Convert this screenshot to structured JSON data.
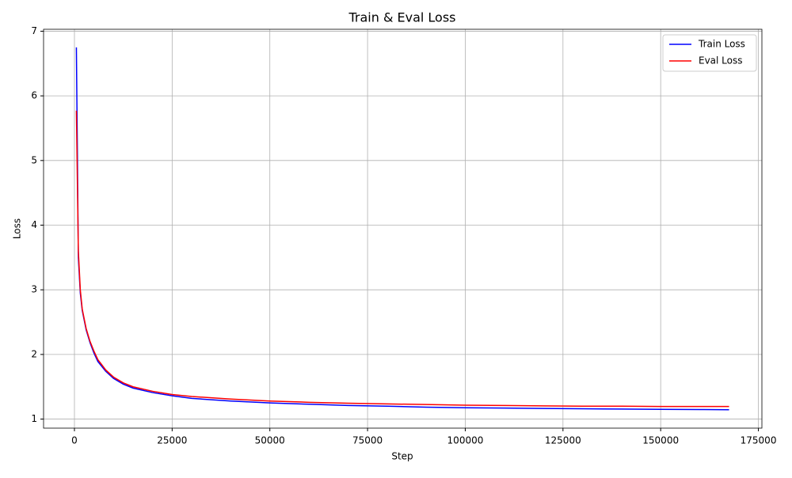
{
  "chart_data": {
    "type": "line",
    "title": "Train & Eval Loss",
    "xlabel": "Step",
    "ylabel": "Loss",
    "x": [
      500,
      1000,
      1500,
      2000,
      3000,
      4000,
      5000,
      6000,
      8000,
      10000,
      12500,
      15000,
      20000,
      25000,
      30000,
      40000,
      50000,
      60000,
      70000,
      80000,
      90000,
      100000,
      110000,
      120000,
      130000,
      140000,
      150000,
      160000,
      167500
    ],
    "series": [
      {
        "name": "Train Loss",
        "color": "#0000ff",
        "values": [
          6.75,
          3.5,
          2.95,
          2.68,
          2.38,
          2.18,
          2.02,
          1.89,
          1.74,
          1.63,
          1.54,
          1.48,
          1.41,
          1.36,
          1.32,
          1.28,
          1.25,
          1.23,
          1.21,
          1.2,
          1.185,
          1.175,
          1.17,
          1.165,
          1.16,
          1.155,
          1.15,
          1.148,
          1.145
        ]
      },
      {
        "name": "Eval Loss",
        "color": "#ff0000",
        "values": [
          5.77,
          3.6,
          3.0,
          2.7,
          2.4,
          2.2,
          2.05,
          1.92,
          1.76,
          1.65,
          1.56,
          1.5,
          1.43,
          1.38,
          1.35,
          1.31,
          1.28,
          1.26,
          1.245,
          1.235,
          1.225,
          1.215,
          1.21,
          1.205,
          1.2,
          1.2,
          1.195,
          1.195,
          1.195
        ]
      }
    ],
    "xlim": [
      -7900,
      175900
    ],
    "ylim": [
      0.86,
      7.03
    ],
    "xticks": [
      0,
      25000,
      50000,
      75000,
      100000,
      125000,
      150000,
      175000
    ],
    "yticks": [
      1,
      2,
      3,
      4,
      5,
      6,
      7
    ],
    "grid": true,
    "legend": "upper right"
  }
}
